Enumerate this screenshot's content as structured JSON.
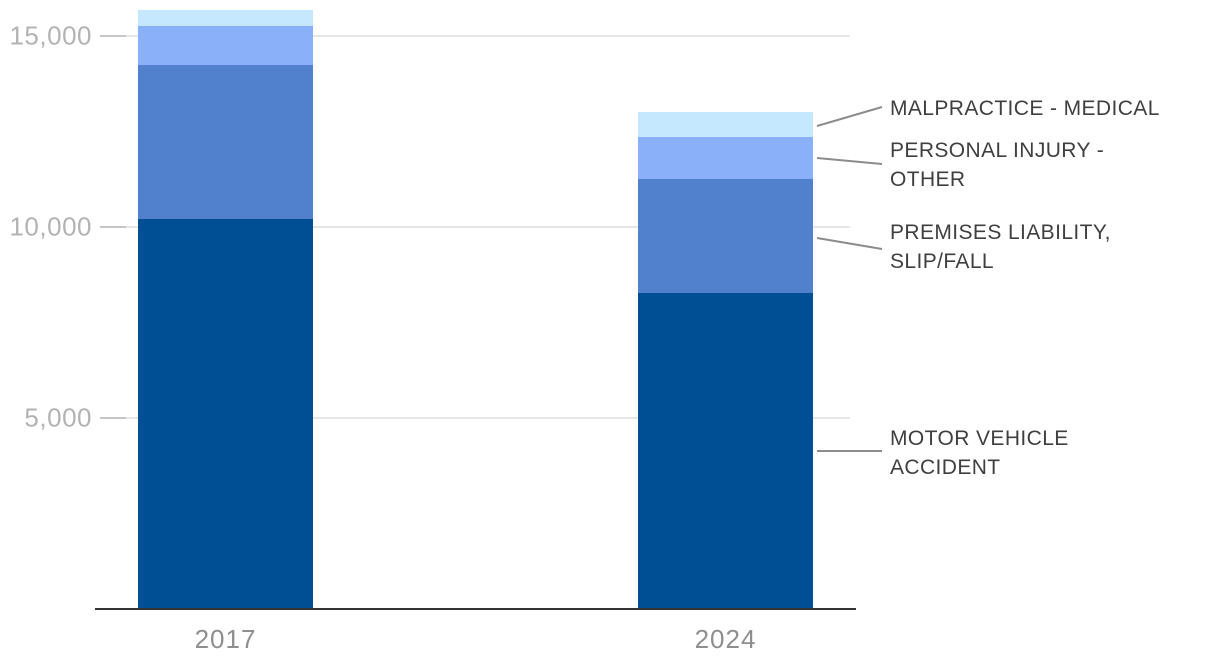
{
  "chart_data": {
    "type": "bar",
    "subtype": "stacked-vertical",
    "title": "",
    "xlabel": "",
    "ylabel": "",
    "categories": [
      "2017",
      "2024"
    ],
    "series": [
      {
        "name": "MOTOR VEHICLE ACCIDENT",
        "color": "#004f94",
        "values": [
          10210,
          8270
        ]
      },
      {
        "name": "PREMISES LIABILITY, SLIP/FALL",
        "color": "#5181cc",
        "values": [
          4030,
          2980
        ]
      },
      {
        "name": "PERSONAL INJURY - OTHER",
        "color": "#8ab0fa",
        "values": [
          1020,
          1100
        ]
      },
      {
        "name": "MALPRACTICE - MEDICAL",
        "color": "#c5e8ff",
        "values": [
          420,
          650
        ]
      }
    ],
    "totals": [
      15680,
      13000
    ],
    "ylim": [
      0,
      15700
    ],
    "y_ticks": [
      {
        "value": 5000,
        "label": "5,000"
      },
      {
        "value": 10000,
        "label": "10,000"
      },
      {
        "value": 15000,
        "label": "15,000"
      }
    ],
    "grid": "horizontal",
    "legend_position": "right-leader-annotations",
    "annotations": [
      {
        "series": "MALPRACTICE - MEDICAL",
        "lines": [
          "MALPRACTICE - MEDICAL"
        ]
      },
      {
        "series": "PERSONAL INJURY - OTHER",
        "lines": [
          "PERSONAL INJURY -",
          "OTHER"
        ]
      },
      {
        "series": "PREMISES LIABILITY, SLIP/FALL",
        "lines": [
          "PREMISES LIABILITY,",
          "SLIP/FALL"
        ]
      },
      {
        "series": "MOTOR VEHICLE ACCIDENT",
        "lines": [
          "MOTOR VEHICLE",
          "ACCIDENT"
        ]
      }
    ]
  },
  "colors": {
    "background": "#ffffff",
    "gridline": "#e6e6e6",
    "axis_line": "#333333",
    "leader_line": "#8c8c8c",
    "ytick_text": "#b3b3b3",
    "xtick_text": "#8e8e8e",
    "annotation_text": "#3f3f3f"
  }
}
